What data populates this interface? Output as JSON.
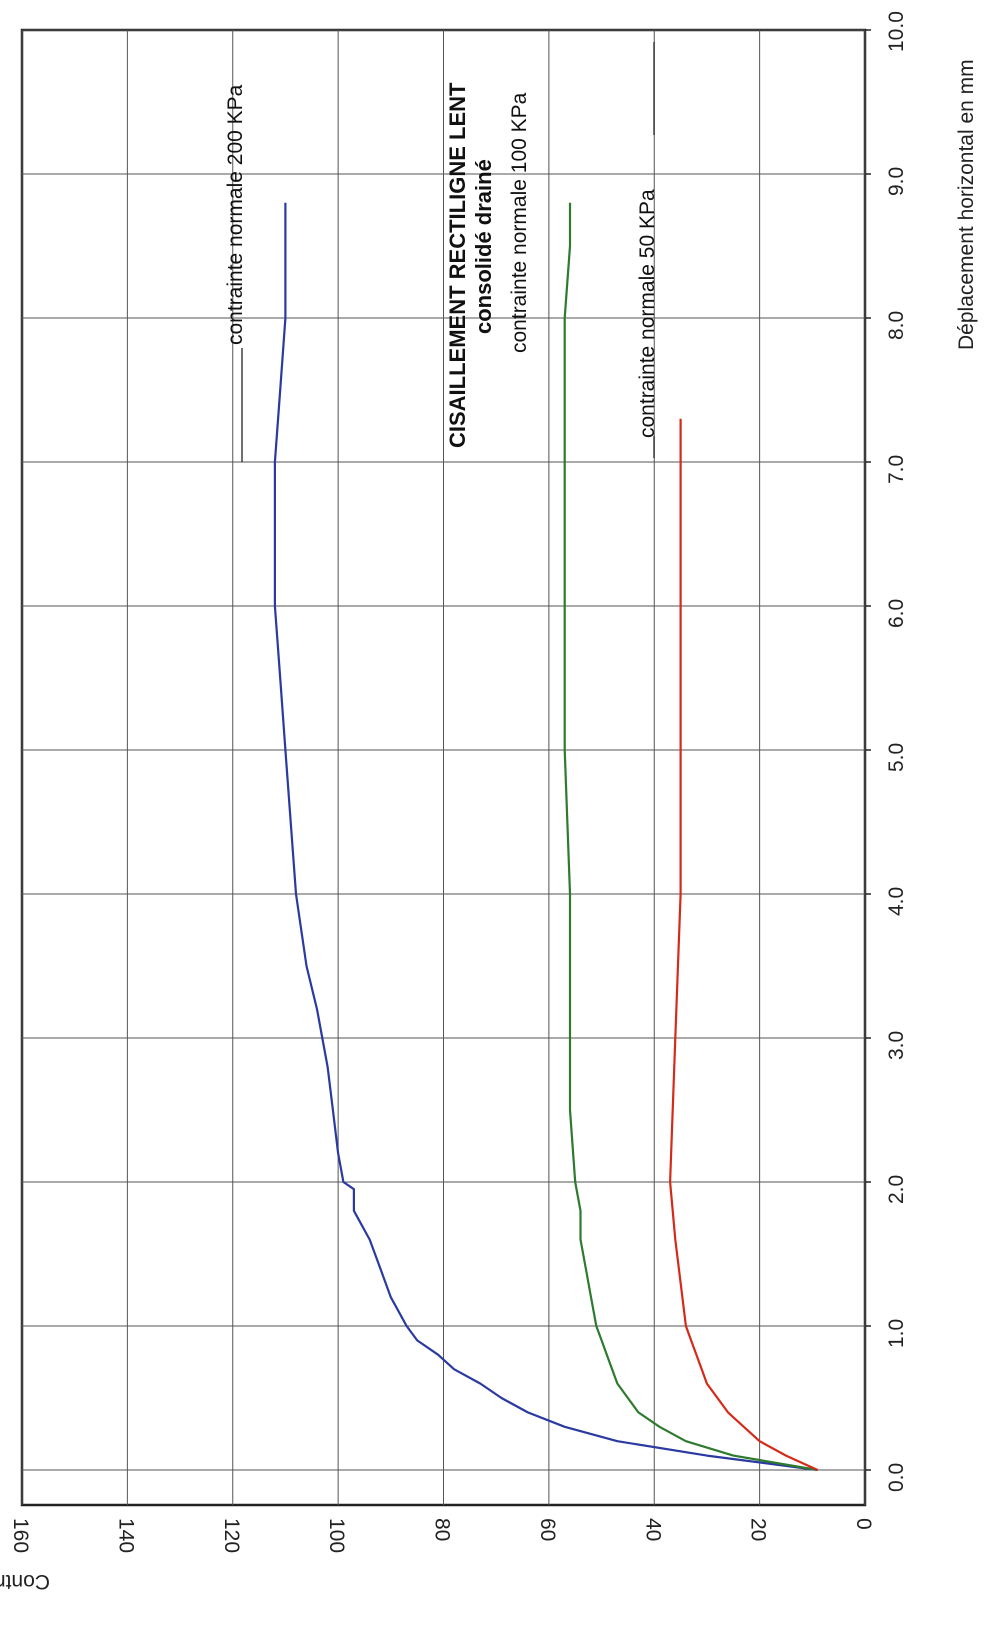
{
  "chart_data": {
    "type": "line",
    "title": "CISAILLEMENT RECTILIGNE LENT",
    "subtitle": "consolidé  drainé",
    "xlabel": "Déplacement horizontal en mm",
    "ylabel": "Contrainte de cisaillement en kPa",
    "xlim": [
      0,
      10
    ],
    "ylim": [
      0,
      160
    ],
    "grid": true,
    "x_ticks": [
      "0.0",
      "1.0",
      "2.0",
      "3.0",
      "4.0",
      "5.0",
      "6.0",
      "7.0",
      "8.0",
      "9.0",
      "10.0"
    ],
    "y_ticks": [
      "0",
      "20",
      "40",
      "60",
      "80",
      "100",
      "120",
      "140",
      "160"
    ],
    "series": [
      {
        "name": "contrainte normale  200 KPa",
        "color": "#2a3aa0",
        "x": [
          0,
          0.1,
          0.2,
          0.3,
          0.4,
          0.5,
          0.6,
          0.7,
          0.8,
          0.9,
          1.0,
          1.2,
          1.4,
          1.6,
          1.8,
          1.95,
          2.0,
          2.2,
          2.5,
          2.8,
          3.0,
          3.2,
          3.5,
          4.0,
          4.5,
          5.0,
          5.5,
          6.0,
          6.5,
          7.0,
          7.5,
          8.0,
          8.5,
          8.8
        ],
        "y": [
          9,
          30,
          47,
          57,
          64,
          69,
          73,
          78,
          81,
          85,
          87,
          90,
          92,
          94,
          97,
          97,
          99,
          100,
          101,
          102,
          103,
          104,
          106,
          108,
          109,
          110,
          111,
          112,
          112,
          112,
          111,
          110,
          110,
          110
        ]
      },
      {
        "name": "contrainte normale  100 KPa",
        "color": "#2e7a2e",
        "x": [
          0,
          0.1,
          0.2,
          0.3,
          0.4,
          0.5,
          0.6,
          0.7,
          0.8,
          0.9,
          1.0,
          1.2,
          1.4,
          1.6,
          1.8,
          2.0,
          2.5,
          3.0,
          3.5,
          4.0,
          5.0,
          6.0,
          7.0,
          8.0,
          8.5,
          8.8
        ],
        "y": [
          9,
          25,
          34,
          39,
          43,
          45,
          47,
          48,
          49,
          50,
          51,
          52,
          53,
          54,
          54,
          55,
          56,
          56,
          56,
          56,
          57,
          57,
          57,
          57,
          56,
          56
        ]
      },
      {
        "name": "contrainte normale 50  KPa",
        "color": "#d42a1a",
        "x": [
          0,
          0.1,
          0.2,
          0.3,
          0.4,
          0.5,
          0.6,
          0.7,
          0.8,
          0.9,
          1.0,
          1.3,
          1.6,
          2.0,
          3.0,
          4.0,
          5.0,
          6.0,
          7.0,
          7.3
        ],
        "y": [
          9,
          15,
          20,
          23,
          26,
          28,
          30,
          31,
          32,
          33,
          34,
          35,
          36,
          37,
          36,
          35,
          35,
          35,
          35,
          35
        ]
      }
    ]
  }
}
